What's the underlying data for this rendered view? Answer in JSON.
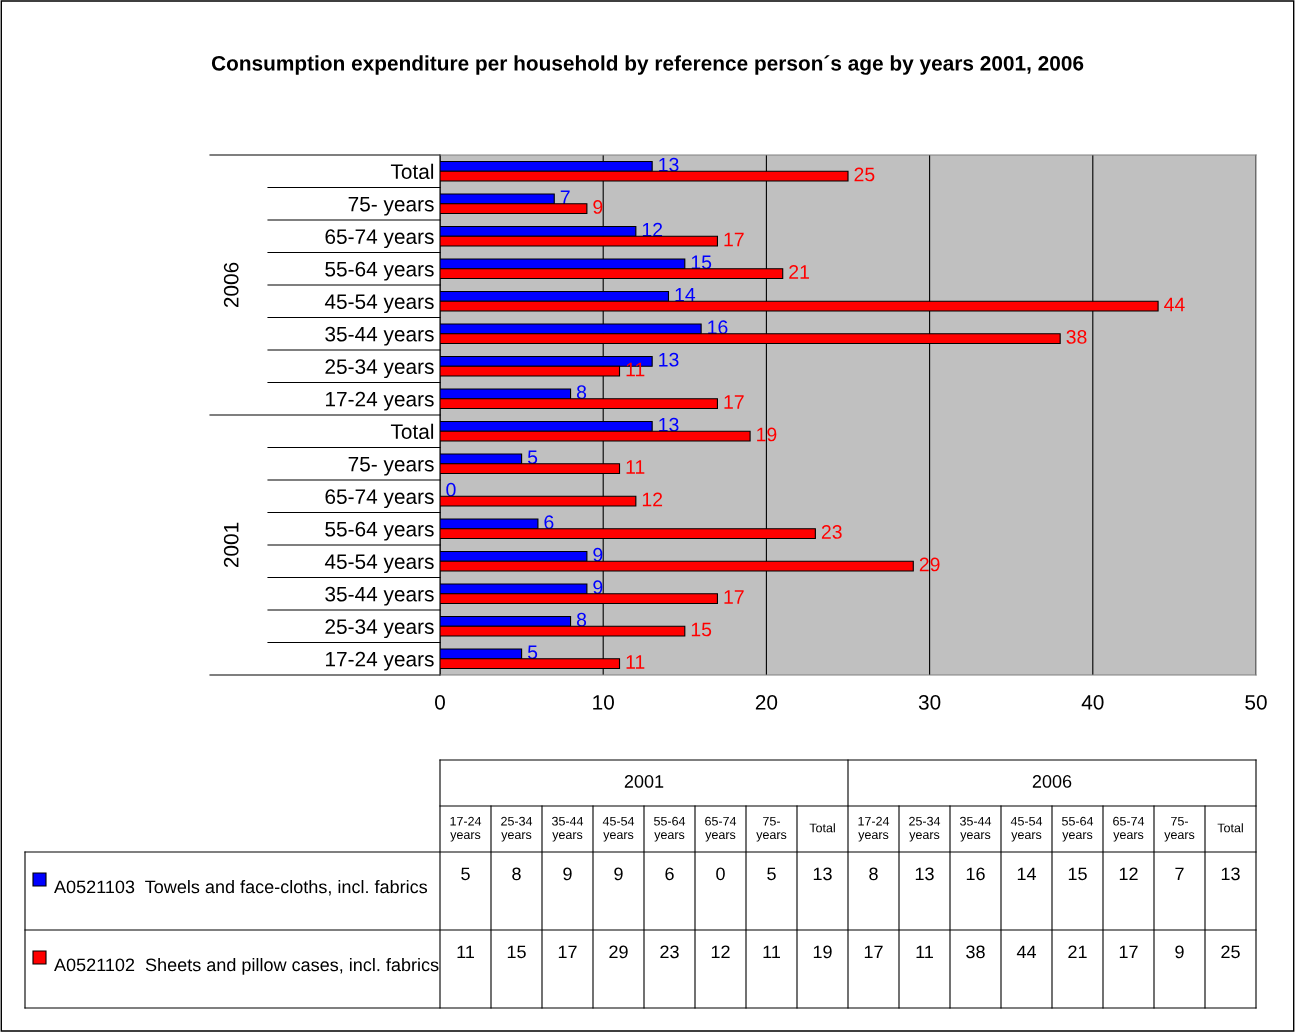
{
  "chart_data": {
    "type": "bar",
    "orientation": "horizontal",
    "title": "Consumption expenditure per household by reference person´s age by years 2001, 2006",
    "categories": [
      "Total",
      "75- years",
      "65-74 years",
      "55-64 years",
      "45-54 years",
      "35-44 years",
      "25-34 years",
      "17-24 years",
      "Total",
      "75- years",
      "65-74 years",
      "55-64 years",
      "45-54 years",
      "35-44 years",
      "25-34 years",
      "17-24 years"
    ],
    "annotations": [
      "2006",
      "2001",
      "5",
      "8",
      "9",
      "9",
      "6",
      "0",
      "5",
      "13",
      "8",
      "13",
      "16",
      "14",
      "15",
      "12",
      "7",
      "13",
      "11",
      "15",
      "17",
      "29",
      "23",
      "12",
      "11",
      "19",
      "17",
      "11",
      "38",
      "44",
      "21",
      "17",
      "9",
      "25"
    ],
    "series": [
      {
        "name": "A0521103  Towels and face-cloths, incl. fabrics",
        "color": "#0000ff",
        "values": [
          13,
          7,
          12,
          15,
          14,
          16,
          13,
          8,
          13,
          5,
          0,
          6,
          9,
          9,
          8,
          5
        ]
      },
      {
        "name": "A0521102  Sheets and pillow cases, incl. fabrics",
        "color": "#ff0000",
        "values": [
          25,
          9,
          17,
          21,
          44,
          38,
          11,
          17,
          19,
          11,
          12,
          23,
          29,
          17,
          15,
          11
        ]
      }
    ],
    "xlim": [
      0,
      50
    ],
    "xticks": [
      0,
      10,
      20,
      30,
      40,
      50
    ],
    "grid": "x",
    "data_labels": true,
    "legend": "bottom"
  }
}
